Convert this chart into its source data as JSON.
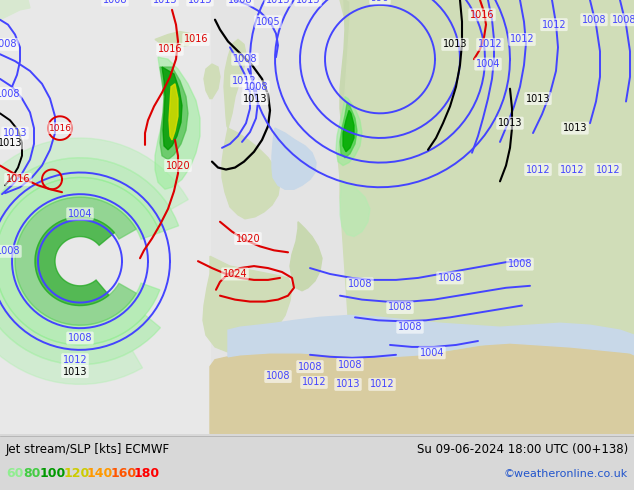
{
  "title_left": "Jet stream/SLP [kts] ECMWF",
  "title_right": "Su 09-06-2024 18:00 UTC (00+138)",
  "credit": "©weatheronline.co.uk",
  "legend_values": [
    "60",
    "80",
    "100",
    "120",
    "140",
    "160",
    "180"
  ],
  "legend_colors": [
    "#90ee90",
    "#44cc44",
    "#009900",
    "#cccc00",
    "#ff9900",
    "#ff5500",
    "#ff0000"
  ],
  "bg_land_color": "#d8e8c8",
  "bg_sea_color": "#e8e8e8",
  "bottom_bar_color": "#d8d8d8",
  "figsize": [
    6.34,
    4.9
  ],
  "dpi": 100,
  "isobar_blue": "#4444ff",
  "isobar_red": "#dd0000",
  "isobar_black": "#000000"
}
